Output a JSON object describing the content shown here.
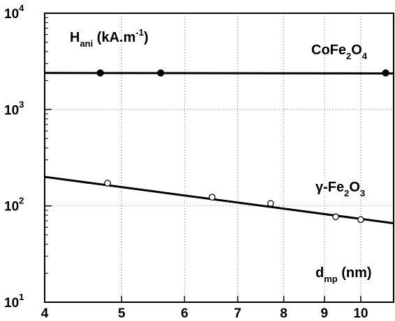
{
  "chart_data": {
    "type": "scatter",
    "title": "",
    "xlabel": "d_mp (nm)",
    "ylabel": "H_ani (kA.m-1)",
    "x_scale": "log",
    "y_scale": "log",
    "xlim": [
      4,
      11
    ],
    "ylim": [
      10,
      10000
    ],
    "grid": true,
    "x_ticks": [
      4,
      5,
      6,
      7,
      8,
      9,
      10
    ],
    "x_tick_labels": [
      "4",
      "5",
      "6",
      "7",
      "8",
      "9",
      "10"
    ],
    "y_ticks": [
      10,
      100,
      1000,
      10000
    ],
    "y_tick_labels": [
      {
        "base": "10",
        "exp": "1"
      },
      {
        "base": "10",
        "exp": "2"
      },
      {
        "base": "10",
        "exp": "3"
      },
      {
        "base": "10",
        "exp": "4"
      }
    ],
    "series": [
      {
        "name": "CoFe2O4",
        "marker": "filled-circle",
        "points": [
          {
            "x": 4.7,
            "y": 2400
          },
          {
            "x": 5.6,
            "y": 2400
          },
          {
            "x": 10.75,
            "y": 2400
          }
        ],
        "fit_line": [
          {
            "x": 4,
            "y": 2400
          },
          {
            "x": 11,
            "y": 2370
          }
        ]
      },
      {
        "name": "γ-Fe2O3",
        "marker": "open-circle",
        "points": [
          {
            "x": 4.8,
            "y": 172
          },
          {
            "x": 6.5,
            "y": 123
          },
          {
            "x": 7.7,
            "y": 106
          },
          {
            "x": 9.3,
            "y": 77
          },
          {
            "x": 10.0,
            "y": 72
          }
        ],
        "fit_line": [
          {
            "x": 4,
            "y": 200
          },
          {
            "x": 11,
            "y": 66
          }
        ]
      }
    ],
    "annotations": {
      "ylabel": {
        "main": "H",
        "sub": "ani",
        "unit": " (kA.m",
        "exp": "-1",
        "close": ")"
      },
      "xlabel": {
        "main": "d",
        "sub": "mp",
        "unit": " (nm)"
      },
      "series1_label": {
        "a": "CoFe",
        "sub1": "2",
        "b": "O",
        "sub2": "4"
      },
      "series2_label": {
        "a": "γ-Fe",
        "sub1": "2",
        "b": "O",
        "sub2": "3"
      }
    }
  }
}
